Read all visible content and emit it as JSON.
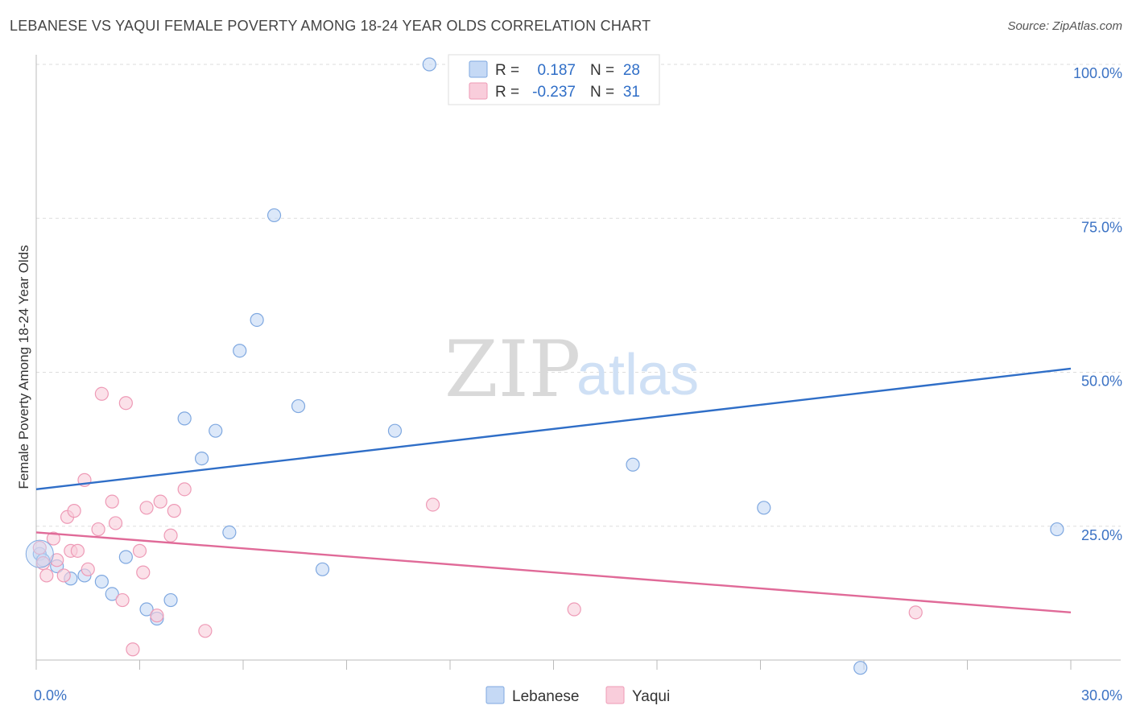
{
  "title": "LEBANESE VS YAQUI FEMALE POVERTY AMONG 18-24 YEAR OLDS CORRELATION CHART",
  "source": "Source: ZipAtlas.com",
  "watermark": {
    "zip": "ZIP",
    "atlas": "atlas"
  },
  "legend": {
    "rows": [
      {
        "r_label": "R =",
        "r_value": "0.187",
        "n_label": "N =",
        "n_value": "28"
      },
      {
        "r_label": "R =",
        "r_value": "-0.237",
        "n_label": "N =",
        "n_value": "31"
      }
    ]
  },
  "bottom_legend": [
    "Lebanese",
    "Yaqui"
  ],
  "colors": {
    "lebanese_fill": "#c5d9f5",
    "lebanese_stroke": "#7fa8e0",
    "lebanese_line": "#2f6ec7",
    "yaqui_fill": "#f9cddb",
    "yaqui_stroke": "#ee9ab6",
    "yaqui_line": "#e06a98"
  },
  "chart_data": {
    "type": "scatter",
    "title": "LEBANESE VS YAQUI FEMALE POVERTY AMONG 18-24 YEAR OLDS CORRELATION CHART",
    "xlabel": "",
    "ylabel": "Female Poverty Among 18-24 Year Olds",
    "xlim": [
      0,
      30
    ],
    "ylim": [
      0,
      105
    ],
    "x_tick_labels": [
      "0.0%",
      "30.0%"
    ],
    "y_ticks": [
      25,
      50,
      75,
      100
    ],
    "y_tick_labels": [
      "25.0%",
      "50.0%",
      "75.0%",
      "100.0%"
    ],
    "grid": true,
    "legend_position": "top-center",
    "series": [
      {
        "name": "Lebanese",
        "r": 0.187,
        "n": 28,
        "trend": [
          [
            0,
            31.0
          ],
          [
            30,
            50.6
          ]
        ],
        "points": [
          [
            0.1,
            20.5
          ],
          [
            0.2,
            19.5
          ],
          [
            0.6,
            18.5
          ],
          [
            1.0,
            16.5
          ],
          [
            1.4,
            17.0
          ],
          [
            1.9,
            16.0
          ],
          [
            2.2,
            14.0
          ],
          [
            2.6,
            20.0
          ],
          [
            3.2,
            11.5
          ],
          [
            3.5,
            10.0
          ],
          [
            3.9,
            13.0
          ],
          [
            4.3,
            42.5
          ],
          [
            4.8,
            36.0
          ],
          [
            5.2,
            40.5
          ],
          [
            5.6,
            24.0
          ],
          [
            5.9,
            53.5
          ],
          [
            6.4,
            58.5
          ],
          [
            6.9,
            75.5
          ],
          [
            7.6,
            44.5
          ],
          [
            8.3,
            18.0
          ],
          [
            10.4,
            40.5
          ],
          [
            11.4,
            100.0
          ],
          [
            12.3,
            100.0
          ],
          [
            14.0,
            100.0
          ],
          [
            17.3,
            35.0
          ],
          [
            21.1,
            28.0
          ],
          [
            23.9,
            2.0
          ],
          [
            29.6,
            24.5
          ]
        ]
      },
      {
        "name": "Yaqui",
        "r": -0.237,
        "n": 31,
        "trend": [
          [
            0,
            24.0
          ],
          [
            30,
            11.0
          ]
        ],
        "points": [
          [
            0.1,
            21.5
          ],
          [
            0.2,
            19.0
          ],
          [
            0.3,
            17.0
          ],
          [
            0.5,
            23.0
          ],
          [
            0.6,
            19.5
          ],
          [
            0.8,
            17.0
          ],
          [
            0.9,
            26.5
          ],
          [
            1.0,
            21.0
          ],
          [
            1.1,
            27.5
          ],
          [
            1.2,
            21.0
          ],
          [
            1.4,
            32.5
          ],
          [
            1.5,
            18.0
          ],
          [
            1.8,
            24.5
          ],
          [
            1.9,
            46.5
          ],
          [
            2.2,
            29.0
          ],
          [
            2.3,
            25.5
          ],
          [
            2.5,
            13.0
          ],
          [
            2.6,
            45.0
          ],
          [
            2.8,
            5.0
          ],
          [
            3.0,
            21.0
          ],
          [
            3.1,
            17.5
          ],
          [
            3.2,
            28.0
          ],
          [
            3.5,
            10.5
          ],
          [
            3.6,
            29.0
          ],
          [
            3.9,
            23.5
          ],
          [
            4.0,
            27.5
          ],
          [
            4.3,
            31.0
          ],
          [
            4.9,
            8.0
          ],
          [
            11.5,
            28.5
          ],
          [
            15.6,
            11.5
          ],
          [
            25.5,
            11.0
          ]
        ]
      }
    ]
  }
}
